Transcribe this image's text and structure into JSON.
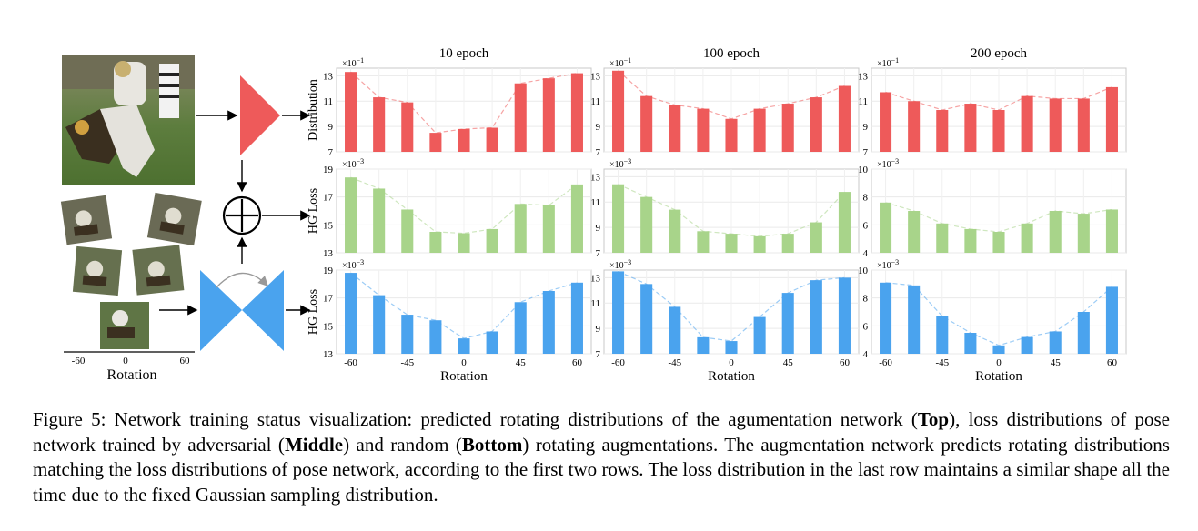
{
  "figure": {
    "columns": [
      "10 epoch",
      "100 epoch",
      "200 epoch"
    ],
    "row_labels": [
      "Distribution",
      "HG Loss",
      "HG Loss"
    ],
    "x_axis_label": "Rotation",
    "x_ticks": [
      "-60",
      "-45",
      "0",
      "45",
      "60"
    ],
    "left_axis": {
      "ticks": [
        "-60",
        "0",
        "60"
      ],
      "label": "Rotation"
    },
    "colors": {
      "red": "#ee5a5a",
      "green": "#a8d48a",
      "blue": "#4aa3ee"
    }
  },
  "caption": {
    "lead": "Figure 5: Network training status visualization: predicted rotating distributions of the agumentation network (",
    "b1": "Top",
    "t1": "), loss distributions of pose network trained by adversarial (",
    "b2": "Middle",
    "t2": ") and random (",
    "b3": "Bottom",
    "t3": ") rotating augmentations. The augmentation network predicts rotating distributions matching the loss distributions of pose network, according to the first two rows. The loss distribution in the last row maintains a similar shape all the time due to the fixed Gaussian sampling distribution."
  },
  "chart_data": [
    {
      "type": "bar",
      "row": 0,
      "col": 0,
      "color": "#ee5a5a",
      "ylabel": "Distribution",
      "title": "10 epoch",
      "multiplier": "×10",
      "exponent": "−1",
      "ylim": [
        7,
        13.6
      ],
      "yticks": [
        7,
        9,
        11,
        13
      ],
      "values": [
        13.3,
        11.3,
        10.9,
        8.5,
        8.8,
        8.9,
        12.4,
        12.8,
        13.2
      ]
    },
    {
      "type": "bar",
      "row": 0,
      "col": 1,
      "color": "#ee5a5a",
      "title": "100 epoch",
      "multiplier": "×10",
      "exponent": "−1",
      "ylim": [
        7,
        13.6
      ],
      "yticks": [
        7,
        9,
        11,
        13
      ],
      "values": [
        13.4,
        11.4,
        10.7,
        10.4,
        9.6,
        10.4,
        10.8,
        11.3,
        12.2
      ]
    },
    {
      "type": "bar",
      "row": 0,
      "col": 2,
      "color": "#ee5a5a",
      "title": "200 epoch",
      "multiplier": "×10",
      "exponent": "−1",
      "ylim": [
        7,
        13.6
      ],
      "yticks": [
        7,
        9,
        11,
        13
      ],
      "values": [
        11.7,
        11.0,
        10.3,
        10.8,
        10.3,
        11.4,
        11.2,
        11.2,
        12.1
      ]
    },
    {
      "type": "bar",
      "row": 1,
      "col": 0,
      "color": "#a8d48a",
      "ylabel": "HG Loss",
      "multiplier": "×10",
      "exponent": "−3",
      "ylim": [
        13,
        19
      ],
      "yticks": [
        13,
        15,
        17,
        19
      ],
      "values": [
        18.4,
        17.6,
        16.1,
        14.5,
        14.4,
        14.7,
        16.5,
        16.4,
        17.9
      ]
    },
    {
      "type": "bar",
      "row": 1,
      "col": 1,
      "color": "#a8d48a",
      "multiplier": "×10",
      "exponent": "−3",
      "ylim": [
        7,
        13.6
      ],
      "yticks": [
        7,
        9,
        11,
        13
      ],
      "values": [
        12.4,
        11.4,
        10.4,
        8.7,
        8.5,
        8.3,
        8.5,
        9.4,
        11.8
      ]
    },
    {
      "type": "bar",
      "row": 1,
      "col": 2,
      "color": "#a8d48a",
      "multiplier": "×10",
      "exponent": "−3",
      "ylim": [
        4,
        10
      ],
      "yticks": [
        4,
        6,
        8,
        10
      ],
      "values": [
        7.6,
        7.0,
        6.1,
        5.7,
        5.5,
        6.1,
        7.0,
        6.8,
        7.1
      ]
    },
    {
      "type": "bar",
      "row": 2,
      "col": 0,
      "color": "#4aa3ee",
      "ylabel": "HG Loss",
      "xlabel": "Rotation",
      "multiplier": "×10",
      "exponent": "−3",
      "ylim": [
        13,
        19
      ],
      "yticks": [
        13,
        15,
        17,
        19
      ],
      "values": [
        18.8,
        17.2,
        15.8,
        15.4,
        14.1,
        14.6,
        16.7,
        17.5,
        18.1
      ]
    },
    {
      "type": "bar",
      "row": 2,
      "col": 1,
      "color": "#4aa3ee",
      "xlabel": "Rotation",
      "multiplier": "×10",
      "exponent": "−3",
      "ylim": [
        7,
        13.6
      ],
      "yticks": [
        7,
        9,
        11,
        13
      ],
      "values": [
        13.5,
        12.5,
        10.7,
        8.3,
        8.0,
        9.9,
        11.8,
        12.8,
        13.0
      ]
    },
    {
      "type": "bar",
      "row": 2,
      "col": 2,
      "color": "#4aa3ee",
      "xlabel": "Rotation",
      "multiplier": "×10",
      "exponent": "−3",
      "ylim": [
        4,
        10
      ],
      "yticks": [
        4,
        6,
        8,
        10
      ],
      "values": [
        9.1,
        8.9,
        6.7,
        5.5,
        4.6,
        5.2,
        5.6,
        7.0,
        8.8
      ]
    }
  ]
}
